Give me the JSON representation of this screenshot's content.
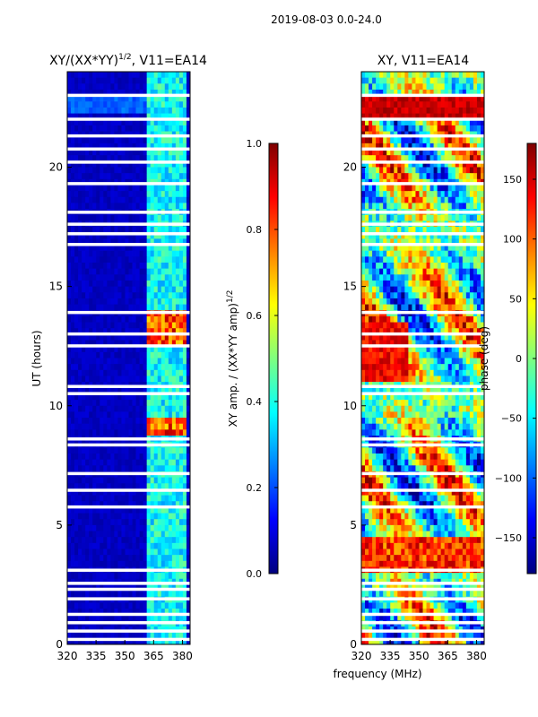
{
  "figure": {
    "suptitle": "2019-08-03 0.0-24.0",
    "xlabel_shared": "frequency (MHz)"
  },
  "chart_data": [
    {
      "type": "heatmap",
      "title_main": "XY/(XX*YY)",
      "title_sup": "1/2",
      "title_tail": ", V11=EA14",
      "xlabel": "",
      "ylabel": "UT (hours)",
      "xlim": [
        320,
        384
      ],
      "ylim": [
        0,
        24
      ],
      "xticks": [
        "320",
        "335",
        "350",
        "365",
        "380"
      ],
      "xtick_values": [
        320,
        335,
        350,
        365,
        380
      ],
      "yticks": [
        "0",
        "5",
        "10",
        "15",
        "20"
      ],
      "ytick_values": [
        0,
        5,
        10,
        15,
        20
      ],
      "colormap": "jet",
      "colorbar": {
        "label_main": "XY amp. / (XX*YY amp)",
        "label_sup": "1/2",
        "range": [
          0.0,
          1.0
        ],
        "ticks": [
          "0.0",
          "0.2",
          "0.4",
          "0.6",
          "0.8",
          "1.0"
        ],
        "tick_values": [
          0.0,
          0.2,
          0.4,
          0.6,
          0.8,
          1.0
        ]
      },
      "flagged_time_bands_hours": [
        0.2,
        0.55,
        0.9,
        1.25,
        1.9,
        2.3,
        2.55,
        3.1,
        5.75,
        6.45,
        7.15,
        8.35,
        8.6,
        10.5,
        10.8,
        12.5,
        13.0,
        13.9,
        16.75,
        17.2,
        17.6,
        18.1,
        19.3,
        20.2,
        20.75,
        21.3,
        22.0,
        23.0
      ]
    },
    {
      "type": "heatmap",
      "title": "XY, V11=EA14",
      "xlabel": "frequency (MHz)",
      "ylabel": "",
      "xlim": [
        320,
        384
      ],
      "ylim": [
        0,
        24
      ],
      "xticks": [
        "320",
        "335",
        "350",
        "365",
        "380"
      ],
      "xtick_values": [
        320,
        335,
        350,
        365,
        380
      ],
      "yticks": [
        "0",
        "5",
        "10",
        "15",
        "20"
      ],
      "ytick_values": [
        0,
        5,
        10,
        15,
        20
      ],
      "colormap": "jet",
      "colorbar": {
        "label": "phase (deg)",
        "range": [
          -180,
          180
        ],
        "ticks": [
          "−150",
          "−100",
          "−50",
          "0",
          "50",
          "100",
          "150"
        ],
        "tick_values": [
          -150,
          -100,
          -50,
          0,
          50,
          100,
          150
        ]
      },
      "flagged_time_bands_hours": [
        0.2,
        0.55,
        0.9,
        1.25,
        1.9,
        2.3,
        2.55,
        3.1,
        5.75,
        6.45,
        7.15,
        8.35,
        8.6,
        10.5,
        10.8,
        12.5,
        13.0,
        13.9,
        16.75,
        17.2,
        17.6,
        18.1,
        19.3,
        20.2,
        20.75,
        21.3,
        22.0,
        23.0
      ]
    }
  ]
}
